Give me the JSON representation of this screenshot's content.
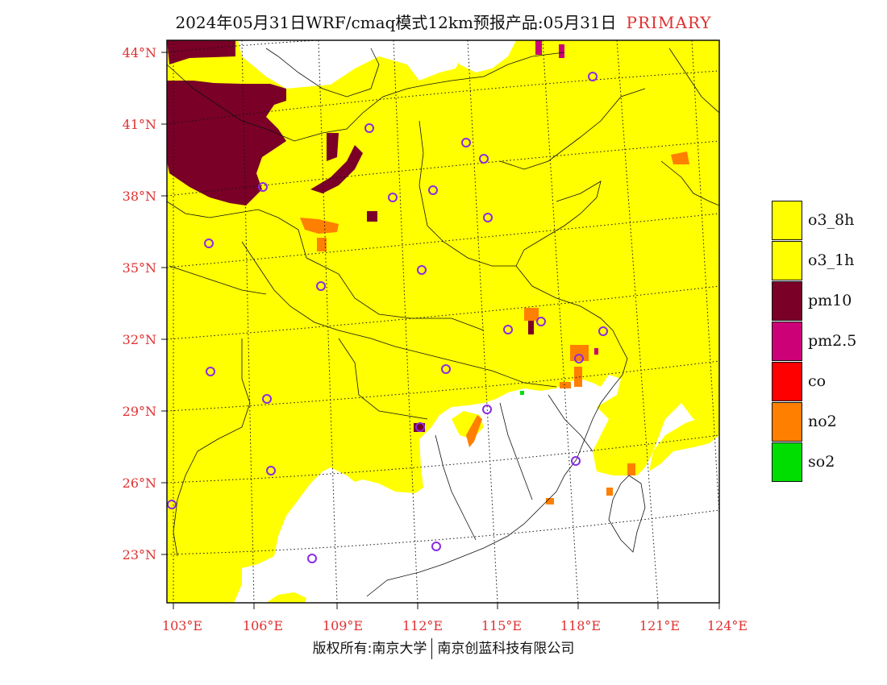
{
  "title": {
    "text": "2024年05月31日WRF/cmaq模式12km预报产品:05月31日",
    "tag": "PRIMARY"
  },
  "axes": {
    "lat_labels": [
      "44°N",
      "41°N",
      "38°N",
      "35°N",
      "32°N",
      "29°N",
      "26°N",
      "23°N"
    ],
    "lon_labels": [
      "103°E",
      "106°E",
      "109°E",
      "112°E",
      "115°E",
      "118°E",
      "121°E",
      "124°E"
    ],
    "label_color": "#e03030"
  },
  "legend": [
    {
      "label": "o3_8h",
      "color": "#ffff00"
    },
    {
      "label": "o3_1h",
      "color": "#ffff00"
    },
    {
      "label": "pm10",
      "color": "#7a0028"
    },
    {
      "label": "pm2.5",
      "color": "#cc0077"
    },
    {
      "label": "co",
      "color": "#ff0000"
    },
    {
      "label": "no2",
      "color": "#ff7f00"
    },
    {
      "label": "so2",
      "color": "#00dd00"
    }
  ],
  "footer": {
    "left": "版权所有:南京大学",
    "right": "南京创蓝科技有限公司"
  }
}
